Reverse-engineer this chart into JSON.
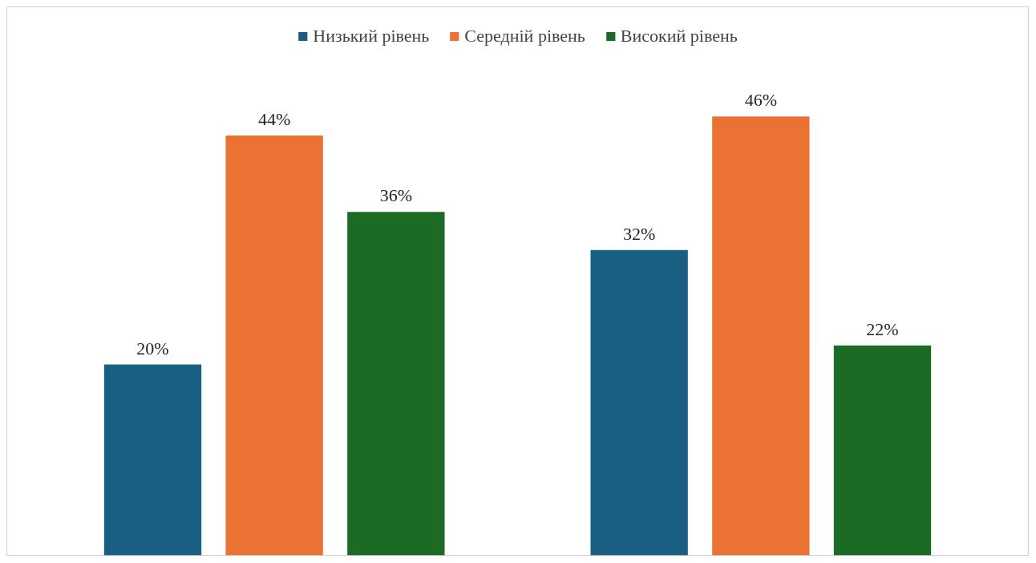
{
  "chart_data": {
    "type": "bar",
    "categories": [
      null,
      null
    ],
    "series": [
      {
        "name": "Низький рівень",
        "color": "#185f82",
        "values": [
          20,
          32
        ],
        "value_labels": [
          "20%",
          "32%"
        ]
      },
      {
        "name": "Середній рівень",
        "color": "#ea7334",
        "values": [
          44,
          46
        ],
        "value_labels": [
          "44%",
          "46%"
        ]
      },
      {
        "name": "Високий рівень",
        "color": "#1b6b25",
        "values": [
          36,
          22
        ],
        "value_labels": [
          "36%",
          "22%"
        ]
      }
    ],
    "ylim": [
      0,
      57.5
    ],
    "grid": false,
    "legend": "top",
    "tick_labels": false
  }
}
